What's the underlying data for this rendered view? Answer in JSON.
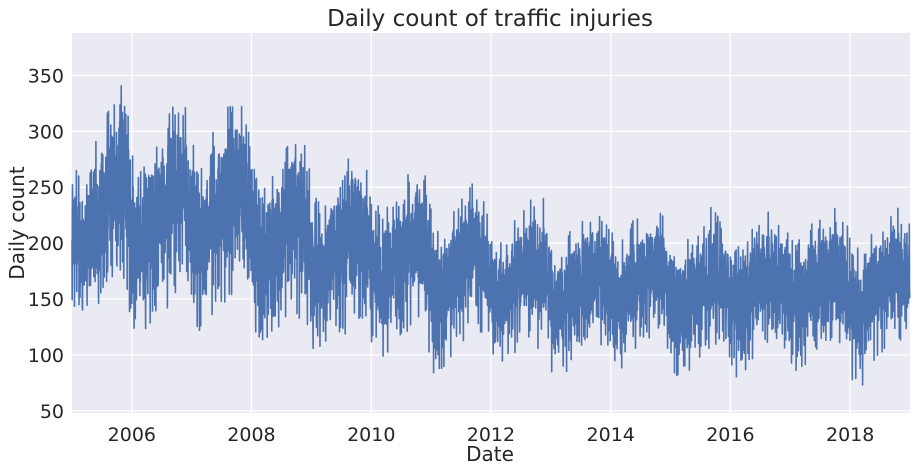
{
  "chart_data": {
    "type": "line",
    "title": "Daily count of traffic injuries",
    "xlabel": "Date",
    "ylabel": "Daily count",
    "xlim": [
      "2005-01-01",
      "2019-01-01"
    ],
    "ylim": [
      48,
      388
    ],
    "x_ticks": [
      "2006",
      "2008",
      "2010",
      "2012",
      "2014",
      "2016",
      "2018"
    ],
    "y_ticks": [
      50,
      100,
      150,
      200,
      250,
      300,
      350
    ],
    "grid": true,
    "legend": "none",
    "series": [
      {
        "color": "#4c72b0",
        "x": [
          "2005-01",
          "2005-03",
          "2005-05",
          "2005-07",
          "2005-09",
          "2005-11",
          "2006-01",
          "2006-03",
          "2006-05",
          "2006-07",
          "2006-09",
          "2006-11",
          "2007-01",
          "2007-03",
          "2007-05",
          "2007-07",
          "2007-09",
          "2007-11",
          "2008-01",
          "2008-03",
          "2008-05",
          "2008-07",
          "2008-09",
          "2008-11",
          "2009-01",
          "2009-03",
          "2009-05",
          "2009-07",
          "2009-09",
          "2009-11",
          "2010-01",
          "2010-03",
          "2010-05",
          "2010-07",
          "2010-09",
          "2010-11",
          "2011-01",
          "2011-03",
          "2011-05",
          "2011-07",
          "2011-09",
          "2011-11",
          "2012-01",
          "2012-03",
          "2012-05",
          "2012-07",
          "2012-09",
          "2012-11",
          "2013-01",
          "2013-03",
          "2013-05",
          "2013-07",
          "2013-09",
          "2013-11",
          "2014-01",
          "2014-03",
          "2014-05",
          "2014-07",
          "2014-09",
          "2014-11",
          "2015-01",
          "2015-03",
          "2015-05",
          "2015-07",
          "2015-09",
          "2015-11",
          "2016-01",
          "2016-03",
          "2016-05",
          "2016-07",
          "2016-09",
          "2016-11",
          "2017-01",
          "2017-03",
          "2017-05",
          "2017-07",
          "2017-09",
          "2017-11",
          "2018-01",
          "2018-03",
          "2018-05",
          "2018-07",
          "2018-09",
          "2018-11"
        ],
        "values": [
          205,
          190,
          215,
          225,
          250,
          255,
          200,
          195,
          220,
          225,
          245,
          250,
          210,
          200,
          225,
          230,
          250,
          245,
          195,
          185,
          200,
          205,
          225,
          215,
          175,
          170,
          190,
          195,
          215,
          205,
          170,
          165,
          180,
          185,
          200,
          195,
          155,
          150,
          170,
          175,
          190,
          185,
          150,
          145,
          165,
          170,
          180,
          175,
          140,
          140,
          160,
          165,
          175,
          170,
          150,
          145,
          160,
          165,
          175,
          170,
          145,
          140,
          155,
          160,
          175,
          165,
          145,
          140,
          160,
          165,
          175,
          165,
          150,
          145,
          160,
          165,
          175,
          170,
          140,
          135,
          155,
          165,
          175,
          170
        ],
        "band": [
          50,
          45,
          50,
          55,
          60,
          60,
          55,
          50,
          55,
          55,
          60,
          60,
          55,
          50,
          55,
          55,
          60,
          60,
          50,
          45,
          50,
          50,
          55,
          55,
          45,
          45,
          45,
          50,
          50,
          50,
          45,
          45,
          45,
          45,
          50,
          50,
          45,
          40,
          45,
          45,
          45,
          45,
          40,
          40,
          40,
          40,
          45,
          45,
          40,
          40,
          40,
          40,
          40,
          40,
          40,
          40,
          40,
          40,
          40,
          40,
          40,
          40,
          40,
          40,
          40,
          40,
          40,
          40,
          40,
          40,
          40,
          40,
          40,
          40,
          40,
          40,
          40,
          40,
          40,
          40,
          40,
          40,
          40,
          40
        ]
      }
    ]
  }
}
